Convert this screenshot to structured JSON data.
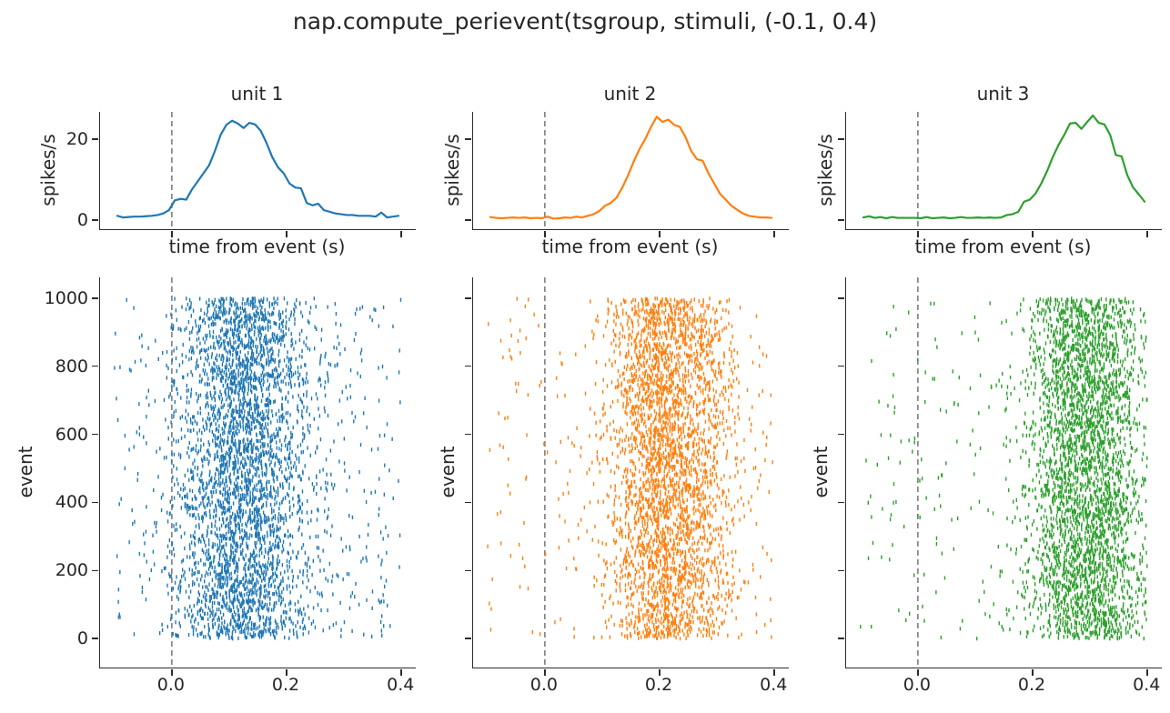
{
  "figure": {
    "title": "nap.compute_perievent(tsgroup, stimuli, (-0.1, 0.4)"
  },
  "colors": {
    "unit1": "#1f77b4",
    "unit2": "#ff7f0e",
    "unit3": "#2ca02c",
    "event_line": "#7f7f7f",
    "axis": "#2b2b2b",
    "text": "#262626"
  },
  "chart_data": [
    {
      "unit": "unit 1",
      "color": "#1f77b4",
      "psth": {
        "type": "line",
        "title": "unit 1",
        "xlabel": "time from event (s)",
        "ylabel": "spikes/s",
        "x_start": -0.095,
        "x_step": 0.01,
        "n_bins": 50,
        "values": [
          1.0,
          0.6,
          0.7,
          0.8,
          0.8,
          0.9,
          1.0,
          1.2,
          1.6,
          2.4,
          4.8,
          5.2,
          5.0,
          7.5,
          9.5,
          11.5,
          13.5,
          17.0,
          21.0,
          23.5,
          24.5,
          23.8,
          22.7,
          24.0,
          23.6,
          22.0,
          19.0,
          15.5,
          13.0,
          11.5,
          9.0,
          8.0,
          7.8,
          4.2,
          3.6,
          4.0,
          2.4,
          2.0,
          1.6,
          1.4,
          1.2,
          1.2,
          1.0,
          1.0,
          1.0,
          0.8,
          1.8,
          0.6,
          0.8,
          1.0
        ],
        "xlim": [
          -0.125,
          0.425
        ],
        "ylim": [
          -2.3,
          26.7
        ],
        "xticks": [
          0.0,
          0.2,
          0.4
        ],
        "xtick_labels": [],
        "yticks": [
          0,
          20
        ],
        "ytick_labels": [
          "0",
          "20"
        ],
        "grid": false
      },
      "raster": {
        "type": "scatter",
        "ylabel": "event",
        "n_events": 1000,
        "time_window": [
          -0.1,
          0.4
        ],
        "rate_from": "psth",
        "seed": 42,
        "xlim": [
          -0.125,
          0.425
        ],
        "ylim": [
          -85,
          1061
        ],
        "xticks": [
          0.0,
          0.2,
          0.4
        ],
        "xtick_labels": [
          "0.0",
          "0.2",
          "0.4"
        ],
        "yticks": [
          0,
          200,
          400,
          600,
          800,
          1000
        ],
        "ytick_labels": [
          "0",
          "200",
          "400",
          "600",
          "800",
          "1000"
        ]
      },
      "event_line": {
        "x": 0,
        "style": "dashed",
        "color": "#7f7f7f"
      }
    },
    {
      "unit": "unit 2",
      "color": "#ff7f0e",
      "psth": {
        "type": "line",
        "title": "unit 2",
        "xlabel": "time from event (s)",
        "ylabel": "spikes/s",
        "x_start": -0.095,
        "x_step": 0.01,
        "n_bins": 50,
        "values": [
          0.7,
          0.5,
          0.4,
          0.5,
          0.6,
          0.5,
          0.6,
          0.4,
          0.5,
          0.4,
          0.8,
          0.3,
          0.4,
          0.6,
          0.5,
          0.8,
          0.6,
          1.0,
          1.4,
          2.2,
          3.5,
          4.2,
          5.5,
          8.0,
          11.0,
          14.5,
          17.5,
          20.0,
          23.0,
          25.5,
          24.2,
          24.8,
          23.5,
          23.0,
          20.5,
          17.0,
          15.0,
          14.6,
          11.5,
          9.0,
          6.5,
          5.0,
          3.5,
          2.5,
          1.6,
          1.0,
          0.8,
          0.6,
          0.6,
          0.5
        ],
        "xlim": [
          -0.125,
          0.425
        ],
        "ylim": [
          -2.3,
          26.7
        ],
        "xticks": [
          0.0,
          0.2,
          0.4
        ],
        "xtick_labels": [],
        "yticks": [
          0,
          20
        ],
        "ytick_labels": [],
        "grid": false
      },
      "raster": {
        "type": "scatter",
        "ylabel": "event",
        "n_events": 1000,
        "time_window": [
          -0.1,
          0.4
        ],
        "rate_from": "psth",
        "seed": 1337,
        "xlim": [
          -0.125,
          0.425
        ],
        "ylim": [
          -85,
          1061
        ],
        "xticks": [
          0.0,
          0.2,
          0.4
        ],
        "xtick_labels": [
          "0.0",
          "0.2",
          "0.4"
        ],
        "yticks": [
          0,
          200,
          400,
          600,
          800,
          1000
        ],
        "ytick_labels": []
      },
      "event_line": {
        "x": 0,
        "style": "dashed",
        "color": "#7f7f7f"
      }
    },
    {
      "unit": "unit 3",
      "color": "#2ca02c",
      "psth": {
        "type": "line",
        "title": "unit 3",
        "xlabel": "time from event (s)",
        "ylabel": "spikes/s",
        "x_start": -0.095,
        "x_step": 0.01,
        "n_bins": 50,
        "values": [
          0.6,
          0.9,
          0.5,
          0.7,
          0.4,
          0.7,
          0.5,
          0.5,
          0.5,
          0.5,
          0.4,
          0.7,
          0.4,
          0.5,
          0.6,
          0.4,
          0.5,
          0.7,
          0.5,
          0.5,
          0.6,
          0.5,
          0.6,
          0.5,
          0.6,
          1.2,
          1.4,
          2.0,
          4.5,
          5.0,
          6.5,
          9.0,
          12.0,
          15.5,
          18.5,
          21.0,
          23.8,
          24.0,
          22.5,
          24.2,
          25.8,
          24.0,
          23.6,
          21.0,
          16.0,
          15.7,
          11.0,
          8.0,
          6.3,
          4.5
        ],
        "xlim": [
          -0.125,
          0.425
        ],
        "ylim": [
          -2.3,
          26.7
        ],
        "xticks": [
          0.0,
          0.2,
          0.4
        ],
        "xtick_labels": [],
        "yticks": [
          0,
          20
        ],
        "ytick_labels": [],
        "grid": false
      },
      "raster": {
        "type": "scatter",
        "ylabel": "event",
        "n_events": 1000,
        "time_window": [
          -0.1,
          0.4
        ],
        "rate_from": "psth",
        "seed": 2024,
        "xlim": [
          -0.125,
          0.425
        ],
        "ylim": [
          -85,
          1061
        ],
        "xticks": [
          0.0,
          0.2,
          0.4
        ],
        "xtick_labels": [
          "0.0",
          "0.2",
          "0.4"
        ],
        "yticks": [
          0,
          200,
          400,
          600,
          800,
          1000
        ],
        "ytick_labels": []
      },
      "event_line": {
        "x": 0,
        "style": "dashed",
        "color": "#7f7f7f"
      }
    }
  ]
}
